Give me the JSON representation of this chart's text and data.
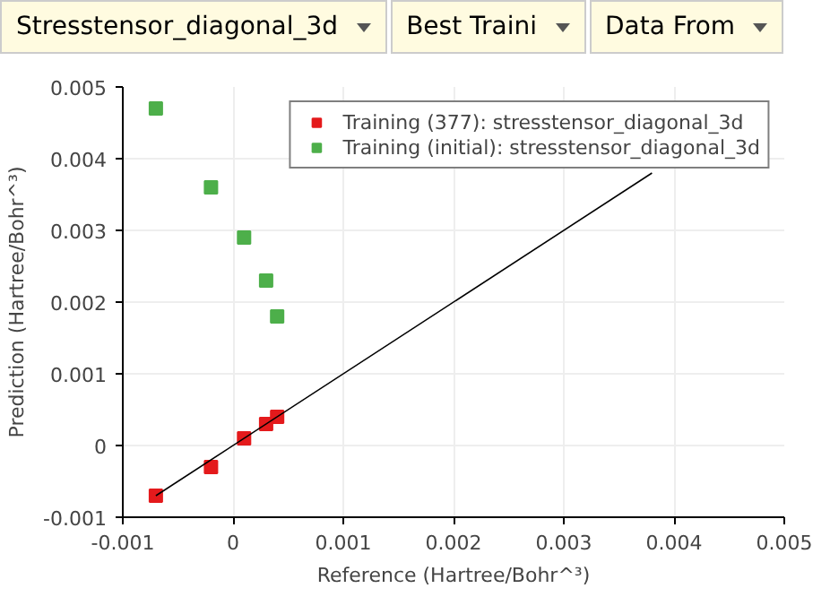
{
  "chart_data": {
    "type": "scatter",
    "xlabel": "Reference (Hartree/Bohr^³)",
    "ylabel": "Prediction (Hartree/Bohr^³)",
    "annotations": [
      "Stresstensor_diagonal_3d",
      "Best Traini",
      "Data From"
    ],
    "x": [
      -0.0007,
      -0.0002,
      0.0001,
      0.0003,
      0.0004
    ],
    "series": [
      {
        "name": "Training (377): stresstensor_diagonal_3d",
        "color": "#e41a1c",
        "marker": "square",
        "values": [
          -0.0007,
          -0.0003,
          0.0001,
          0.0003,
          0.0004
        ]
      },
      {
        "name": "Training (initial): stresstensor_diagonal_3d",
        "color": "#4daf4a",
        "marker": "square",
        "values": [
          0.0047,
          0.0036,
          0.0029,
          0.0023,
          0.0018
        ]
      },
      {
        "type": "line",
        "color": "#000000",
        "x": [
          -0.0007,
          0.0038
        ],
        "values": [
          -0.0007,
          0.0038
        ]
      }
    ],
    "xlim": [
      -0.001,
      0.005
    ],
    "ylim": [
      -0.001,
      0.005
    ],
    "xticks": [
      -0.001,
      0,
      0.001,
      0.002,
      0.003,
      0.004,
      0.005
    ],
    "yticks": [
      -0.001,
      0,
      0.001,
      0.002,
      0.003,
      0.004,
      0.005
    ],
    "grid": true,
    "legend": "top right"
  }
}
